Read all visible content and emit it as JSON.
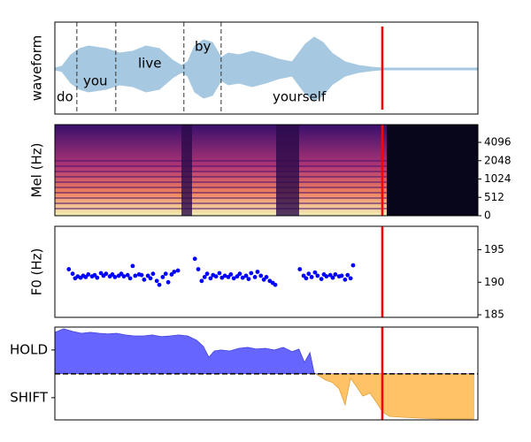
{
  "chart_data": [
    {
      "type": "waveform",
      "ylabel": "waveform",
      "xlim": [
        0,
        100
      ],
      "words": [
        "do",
        "you",
        "live",
        "by",
        "yourself"
      ],
      "word_boundaries": [
        5.2,
        14.4,
        30.5,
        39.3
      ],
      "marker_x": 77.4,
      "color": "#a6c8e0",
      "marker_color": "red"
    },
    {
      "type": "spectrogram",
      "ylabel": "Mel (Hz)",
      "xlim": [
        0,
        100
      ],
      "ylim": [
        0,
        8000
      ],
      "yscale": "symlog",
      "linthresh": 512,
      "yticks": [
        0,
        512,
        1024,
        2048,
        4096
      ],
      "marker_x": 77.4,
      "marker_color": "red"
    },
    {
      "type": "scatter",
      "ylabel": "F0 (Hz)",
      "xlim": [
        0,
        100
      ],
      "ylim": [
        184.6,
        198.6
      ],
      "yticks": [
        185,
        190,
        195
      ],
      "color": "blue",
      "marker_x": 77.4,
      "marker_color": "red",
      "x": [
        3.3,
        4.2,
        4.8,
        5.4,
        6.1,
        6.7,
        7.3,
        7.9,
        8.8,
        9.4,
        10.0,
        10.9,
        11.5,
        12.1,
        13.0,
        13.6,
        14.2,
        15.1,
        15.7,
        16.3,
        17.2,
        17.8,
        18.4,
        19.0,
        19.9,
        20.5,
        21.1,
        22.0,
        22.6,
        23.2,
        24.1,
        24.7,
        25.5,
        26.2,
        26.8,
        27.6,
        28.2,
        29.1,
        33.1,
        33.9,
        34.7,
        35.4,
        36.0,
        36.8,
        37.4,
        38.1,
        38.9,
        39.5,
        40.2,
        41.0,
        41.6,
        42.3,
        43.1,
        43.7,
        44.4,
        45.2,
        45.8,
        46.4,
        47.3,
        47.9,
        48.7,
        49.4,
        50.0,
        50.8,
        51.5,
        52.1,
        57.9,
        58.8,
        59.4,
        60.0,
        60.7,
        61.5,
        62.1,
        63.0,
        63.6,
        64.2,
        65.1,
        65.7,
        66.3,
        67.2,
        67.8,
        68.6,
        69.2,
        69.9,
        70.5
      ],
      "values": [
        192.0,
        191.3,
        190.6,
        190.9,
        190.7,
        191.0,
        190.8,
        191.2,
        190.9,
        191.1,
        190.7,
        191.4,
        191.0,
        191.3,
        190.9,
        191.2,
        190.8,
        191.0,
        191.3,
        190.9,
        191.1,
        190.6,
        192.5,
        191.0,
        191.2,
        191.1,
        190.4,
        191.0,
        190.6,
        191.3,
        190.2,
        189.6,
        190.8,
        191.3,
        190.0,
        191.2,
        191.6,
        191.8,
        193.6,
        192.0,
        190.2,
        190.8,
        191.3,
        190.6,
        191.1,
        190.9,
        191.4,
        190.7,
        191.0,
        190.8,
        191.2,
        190.6,
        190.9,
        191.3,
        190.7,
        191.0,
        190.5,
        191.4,
        190.8,
        191.6,
        191.0,
        190.4,
        190.8,
        190.2,
        189.9,
        189.6,
        192.0,
        191.0,
        190.6,
        191.3,
        190.8,
        191.5,
        191.0,
        190.5,
        191.2,
        190.9,
        191.1,
        190.7,
        191.2,
        190.9,
        191.0,
        190.4,
        191.1,
        190.6,
        192.6
      ]
    },
    {
      "type": "area",
      "xlim": [
        0,
        100
      ],
      "ylim": [
        -1.93,
        1.96
      ],
      "yticks": [
        {
          "value": 1,
          "label": "HOLD"
        },
        {
          "value": -1,
          "label": "SHIFT"
        }
      ],
      "hline": 0,
      "color_pos": "#6666ff",
      "color_neg": "#ffc266",
      "marker_x": 77.4,
      "marker_color": "red",
      "x": [
        0,
        2.1,
        4.2,
        6.3,
        8.4,
        10.5,
        12.6,
        14.6,
        16.7,
        18.8,
        20.9,
        23.0,
        25.1,
        27.2,
        29.3,
        31.4,
        33.5,
        35.1,
        36.4,
        37.7,
        39.3,
        41.4,
        43.5,
        45.6,
        47.7,
        49.8,
        51.9,
        54.0,
        56.1,
        57.7,
        59.0,
        60.3,
        61.3,
        62.3,
        64.0,
        65.7,
        67.2,
        68.6,
        69.9,
        71.1,
        72.8,
        74.5,
        76.0,
        77.4,
        79.1,
        81.2,
        85.4,
        91.6,
        99.0
      ],
      "values": [
        1.74,
        1.89,
        1.78,
        1.7,
        1.74,
        1.7,
        1.67,
        1.7,
        1.63,
        1.59,
        1.59,
        1.63,
        1.56,
        1.59,
        1.63,
        1.59,
        1.41,
        1.15,
        0.7,
        0.96,
        1.0,
        0.96,
        1.07,
        1.11,
        1.04,
        1.07,
        1.0,
        1.11,
        0.93,
        1.04,
        0.48,
        0.89,
        0.04,
        -0.07,
        -0.26,
        -0.37,
        -0.63,
        -1.3,
        -0.19,
        -0.48,
        -0.93,
        -0.81,
        -1.19,
        -1.59,
        -1.78,
        -1.81,
        -1.85,
        -1.89,
        -1.89
      ]
    }
  ]
}
